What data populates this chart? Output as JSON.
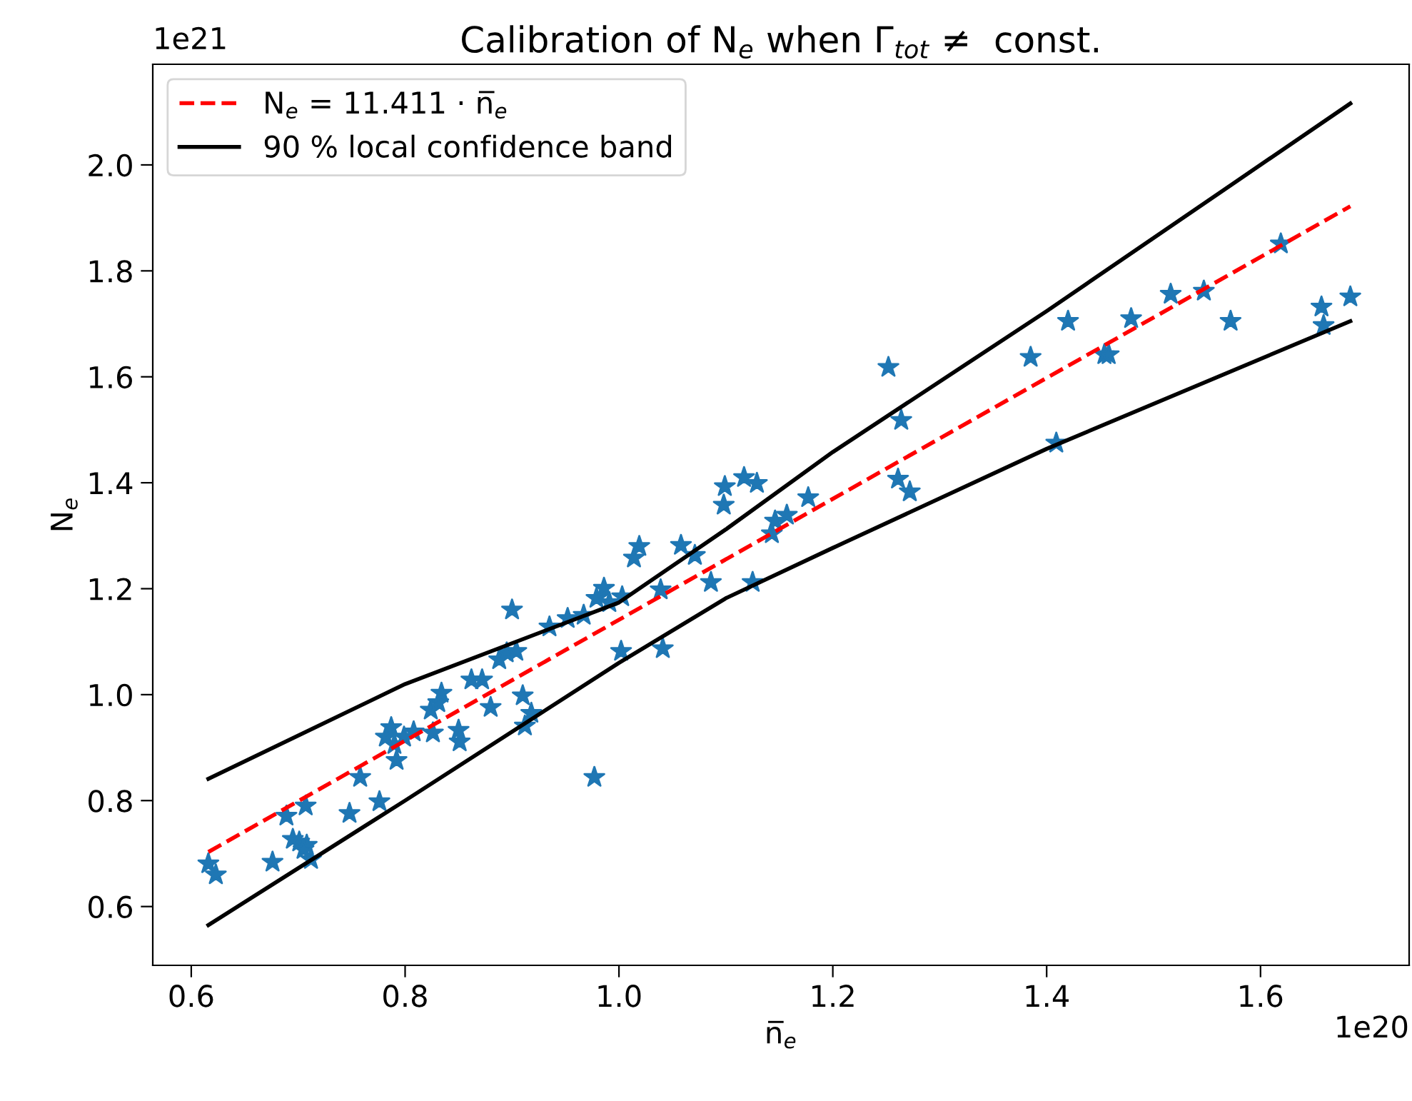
{
  "chart_data": {
    "type": "scatter",
    "title": "Calibration of N$_{e}$ when Γ$_{tot}$ ≠  const.",
    "xlabel": "n̅$_{e}$",
    "ylabel": "N$_{e}$",
    "annotations": [
      "1e21",
      "1e20"
    ],
    "xlim": [
      0.564,
      1.739
    ],
    "ylim": [
      0.489,
      2.19
    ],
    "xticks": [
      0.6,
      0.8,
      {
        "value": 1,
        "label": "1.0"
      },
      1.2,
      1.4,
      1.6
    ],
    "yticks": [
      0.6,
      0.8,
      {
        "value": 1,
        "label": "1.0"
      },
      1.2,
      1.4,
      1.6,
      1.8,
      {
        "value": 2,
        "label": "2.0"
      }
    ],
    "grid": false,
    "legend": "top left",
    "series": [
      {
        "color": "#1f77b4",
        "marker": "star",
        "x": [
          0.616,
          0.623,
          0.676,
          0.689,
          0.695,
          0.707,
          0.701,
          0.708,
          0.712,
          0.705,
          0.748,
          0.758,
          0.776,
          0.782,
          0.787,
          0.79,
          0.792,
          0.799,
          0.808,
          0.824,
          0.826,
          0.831,
          0.834,
          0.85,
          0.851,
          0.862,
          0.872,
          0.88,
          0.888,
          0.895,
          0.9,
          0.904,
          0.91,
          0.912,
          0.918,
          0.935,
          0.952,
          0.967,
          0.977,
          0.979,
          0.986,
          0.991,
          1.003,
          1.002,
          1.014,
          1.019,
          1.039,
          1.041,
          1.058,
          1.071,
          1.086,
          1.098,
          1.099,
          1.117,
          1.125,
          1.129,
          1.143,
          1.146,
          1.157,
          1.177,
          1.252,
          1.264,
          1.261,
          1.272,
          1.385,
          1.409,
          1.42,
          1.454,
          1.458,
          1.479,
          1.516,
          1.547,
          1.572,
          1.619,
          1.657,
          1.659,
          1.684
        ],
        "values": [
          0.681,
          0.66,
          0.684,
          0.771,
          0.727,
          0.79,
          0.722,
          0.716,
          0.689,
          0.708,
          0.776,
          0.844,
          0.798,
          0.92,
          0.938,
          0.906,
          0.876,
          0.92,
          0.93,
          0.971,
          0.928,
          0.985,
          1.003,
          0.933,
          0.911,
          1.028,
          1.028,
          0.976,
          1.066,
          1.079,
          1.16,
          1.082,
          0.998,
          0.941,
          0.965,
          1.128,
          1.144,
          1.15,
          0.844,
          1.182,
          1.201,
          1.174,
          1.185,
          1.082,
          1.258,
          1.28,
          1.198,
          1.087,
          1.282,
          1.263,
          1.212,
          1.358,
          1.393,
          1.41,
          1.212,
          1.399,
          1.304,
          1.328,
          1.339,
          1.372,
          1.618,
          1.518,
          1.407,
          1.383,
          1.637,
          1.475,
          1.705,
          1.642,
          1.642,
          1.71,
          1.756,
          1.762,
          1.705,
          1.851,
          1.732,
          1.697,
          1.751
        ]
      },
      {
        "type": "line",
        "name": "N$_{e}$ = 11.411 · n̅$_{e}$",
        "color": "#ff0000",
        "line_style": "dashed",
        "x": [
          0.616,
          1.684
        ],
        "values": [
          0.703,
          1.922
        ]
      },
      {
        "type": "line",
        "name": "90 % local confidence band",
        "color": "#000000",
        "line_style": "solid",
        "x": [
          0.616,
          0.8,
          1.0,
          1.1,
          1.2,
          1.4,
          1.684
        ],
        "values": [
          0.841,
          1.02,
          1.174,
          1.312,
          1.458,
          1.724,
          2.116
        ]
      },
      {
        "type": "line",
        "color": "#000000",
        "line_style": "solid",
        "x": [
          0.616,
          0.8,
          1.0,
          1.1,
          1.2,
          1.4,
          1.684
        ],
        "values": [
          0.565,
          0.8,
          1.06,
          1.182,
          1.277,
          1.464,
          1.705
        ]
      }
    ]
  }
}
